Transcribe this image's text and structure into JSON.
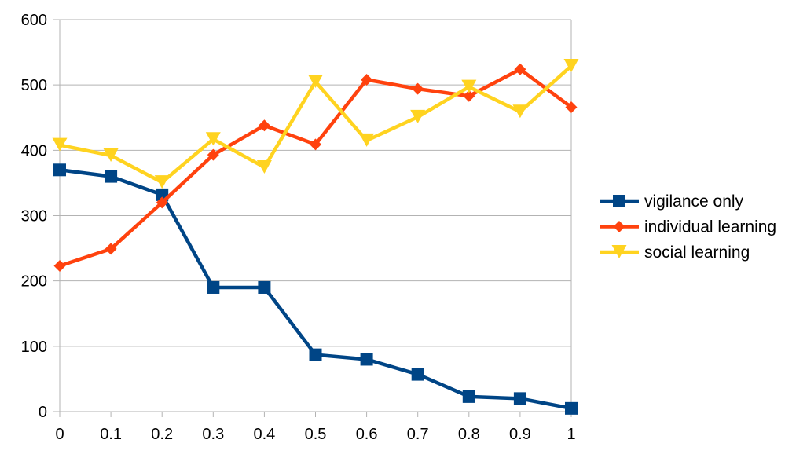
{
  "chart_data": {
    "type": "line",
    "title": "",
    "xlabel": "",
    "ylabel": "",
    "x": [
      0,
      0.1,
      0.2,
      0.3,
      0.4,
      0.5,
      0.6,
      0.7,
      0.8,
      0.9,
      1
    ],
    "x_tick_labels": [
      "0",
      "0.1",
      "0.2",
      "0.3",
      "0.4",
      "0.5",
      "0.6",
      "0.7",
      "0.8",
      "0.9",
      "1"
    ],
    "ylim": [
      0,
      600
    ],
    "y_ticks": [
      0,
      100,
      200,
      300,
      400,
      500,
      600
    ],
    "y_tick_labels": [
      "0",
      "100",
      "200",
      "300",
      "400",
      "500",
      "600"
    ],
    "grid": "horizontal",
    "legend_position": "right",
    "series": [
      {
        "name": "vigilance only",
        "color": "#004586",
        "marker": "square",
        "values": [
          370,
          360,
          332,
          190,
          190,
          87,
          80,
          57,
          23,
          20,
          5
        ]
      },
      {
        "name": "individual learning",
        "color": "#ff420e",
        "marker": "diamond",
        "values": [
          223,
          249,
          320,
          393,
          438,
          409,
          508,
          494,
          483,
          524,
          466
        ]
      },
      {
        "name": "social learning",
        "color": "#ffd320",
        "marker": "triangle-down",
        "values": [
          408,
          392,
          351,
          417,
          374,
          505,
          415,
          451,
          497,
          459,
          529
        ]
      }
    ]
  }
}
